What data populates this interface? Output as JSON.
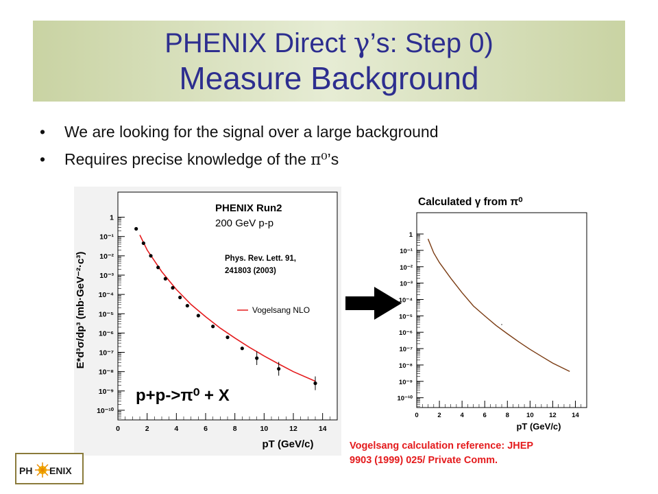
{
  "slide": {
    "title_line1_a": "PHENIX Direct ",
    "title_gamma": "γ",
    "title_line1_b": "’s: ",
    "title_line1_c": "Step 0)",
    "title_line2": "Measure Background",
    "bullets": [
      {
        "marker": "•",
        "text_a": "We are looking for the signal over a large background",
        "sym": "",
        "text_b": ""
      },
      {
        "marker": "•",
        "text_a": "Requires precise knowledge of the ",
        "sym": "π⁰",
        "text_b": "’s"
      }
    ],
    "reference_note_line1": "Vogelsang calculation reference: JHEP",
    "reference_note_line2": "9903 (1999) 025/ Private Comm.",
    "logo_text_left": "PH",
    "logo_text_right": "ENIX",
    "arrow_icon": "right-arrow-icon",
    "colors": {
      "title_text": "#2d2e8f",
      "title_band": "#d7dfbb",
      "fit_line": "#e41a1c",
      "calc_line": "#7a3b12",
      "reference_text": "#e41a1c"
    }
  },
  "chart_data": [
    {
      "type": "scatter",
      "ylabel": "E*d³σ/dp³ (mb·GeV⁻²·c³)",
      "xlabel": "pT (GeV/c)",
      "annotations": {
        "run": "PHENIX Run2",
        "energy": "200 GeV p-p",
        "reference_1": "Phys. Rev. Lett. 91,",
        "reference_2": "241803 (2003)",
        "legend": "Vogelsang NLO",
        "process": "p+p->π⁰ + X"
      },
      "x_ticks": [
        "0",
        "2",
        "4",
        "6",
        "8",
        "10",
        "12",
        "14"
      ],
      "y_ticks": [
        "1",
        "10⁻¹",
        "10⁻²",
        "10⁻³",
        "10⁻⁴",
        "10⁻⁵",
        "10⁻⁶",
        "10⁻⁷",
        "10⁻⁸",
        "10⁻⁹",
        "10⁻¹⁰"
      ],
      "xlim": [
        0,
        15
      ],
      "ylim_log10": [
        -10.5,
        1.3
      ],
      "y_scale": "log",
      "series": [
        {
          "x": [
            1.25,
            1.75,
            2.25,
            2.75,
            3.25,
            3.75,
            4.25,
            4.75,
            5.5,
            6.5,
            7.5,
            8.5,
            9.5,
            11,
            13.5
          ],
          "y": [
            0.25,
            0.045,
            0.01,
            0.0025,
            0.00065,
            0.00022,
            7e-05,
            2.6e-05,
            8e-06,
            2.2e-06,
            6e-07,
            1.6e-07,
            5e-08,
            1.4e-08,
            2.5e-09
          ]
        },
        {
          "name": "Vogelsang NLO",
          "x": [
            1.5,
            2,
            3,
            4,
            5,
            6,
            7,
            8,
            9,
            10,
            11,
            12,
            13.5
          ],
          "y": [
            0.12,
            0.02,
            0.0015,
            0.00018,
            3e-05,
            7e-06,
            1.8e-06,
            5.5e-07,
            1.8e-07,
            6.5e-08,
            2.5e-08,
            1e-08,
            3.2e-09
          ]
        }
      ],
      "legend": "right",
      "grid": false
    },
    {
      "type": "line",
      "title": "Calculated γ from π⁰",
      "xlabel": "pT (GeV/c)",
      "x_ticks": [
        "0",
        "2",
        "4",
        "6",
        "8",
        "10",
        "12",
        "14"
      ],
      "y_ticks": [
        "1",
        "10⁻¹",
        "10⁻²",
        "10⁻³",
        "10⁻⁴",
        "10⁻⁵",
        "10⁻⁶",
        "10⁻⁷",
        "10⁻⁸",
        "10⁻⁹",
        "10⁻¹⁰"
      ],
      "xlim": [
        0,
        15
      ],
      "ylim_log10": [
        -10.6,
        1.3
      ],
      "y_scale": "log",
      "series": [
        {
          "x": [
            1,
            1.5,
            2,
            3,
            4,
            5,
            6,
            7,
            8,
            9,
            10,
            11,
            12,
            13.5
          ],
          "y": [
            0.5,
            0.07,
            0.018,
            0.002,
            0.00026,
            4e-05,
            1e-05,
            2.6e-06,
            8e-07,
            2.6e-07,
            9e-08,
            3.4e-08,
            1.3e-08,
            4e-09
          ]
        }
      ],
      "grid": false
    }
  ]
}
